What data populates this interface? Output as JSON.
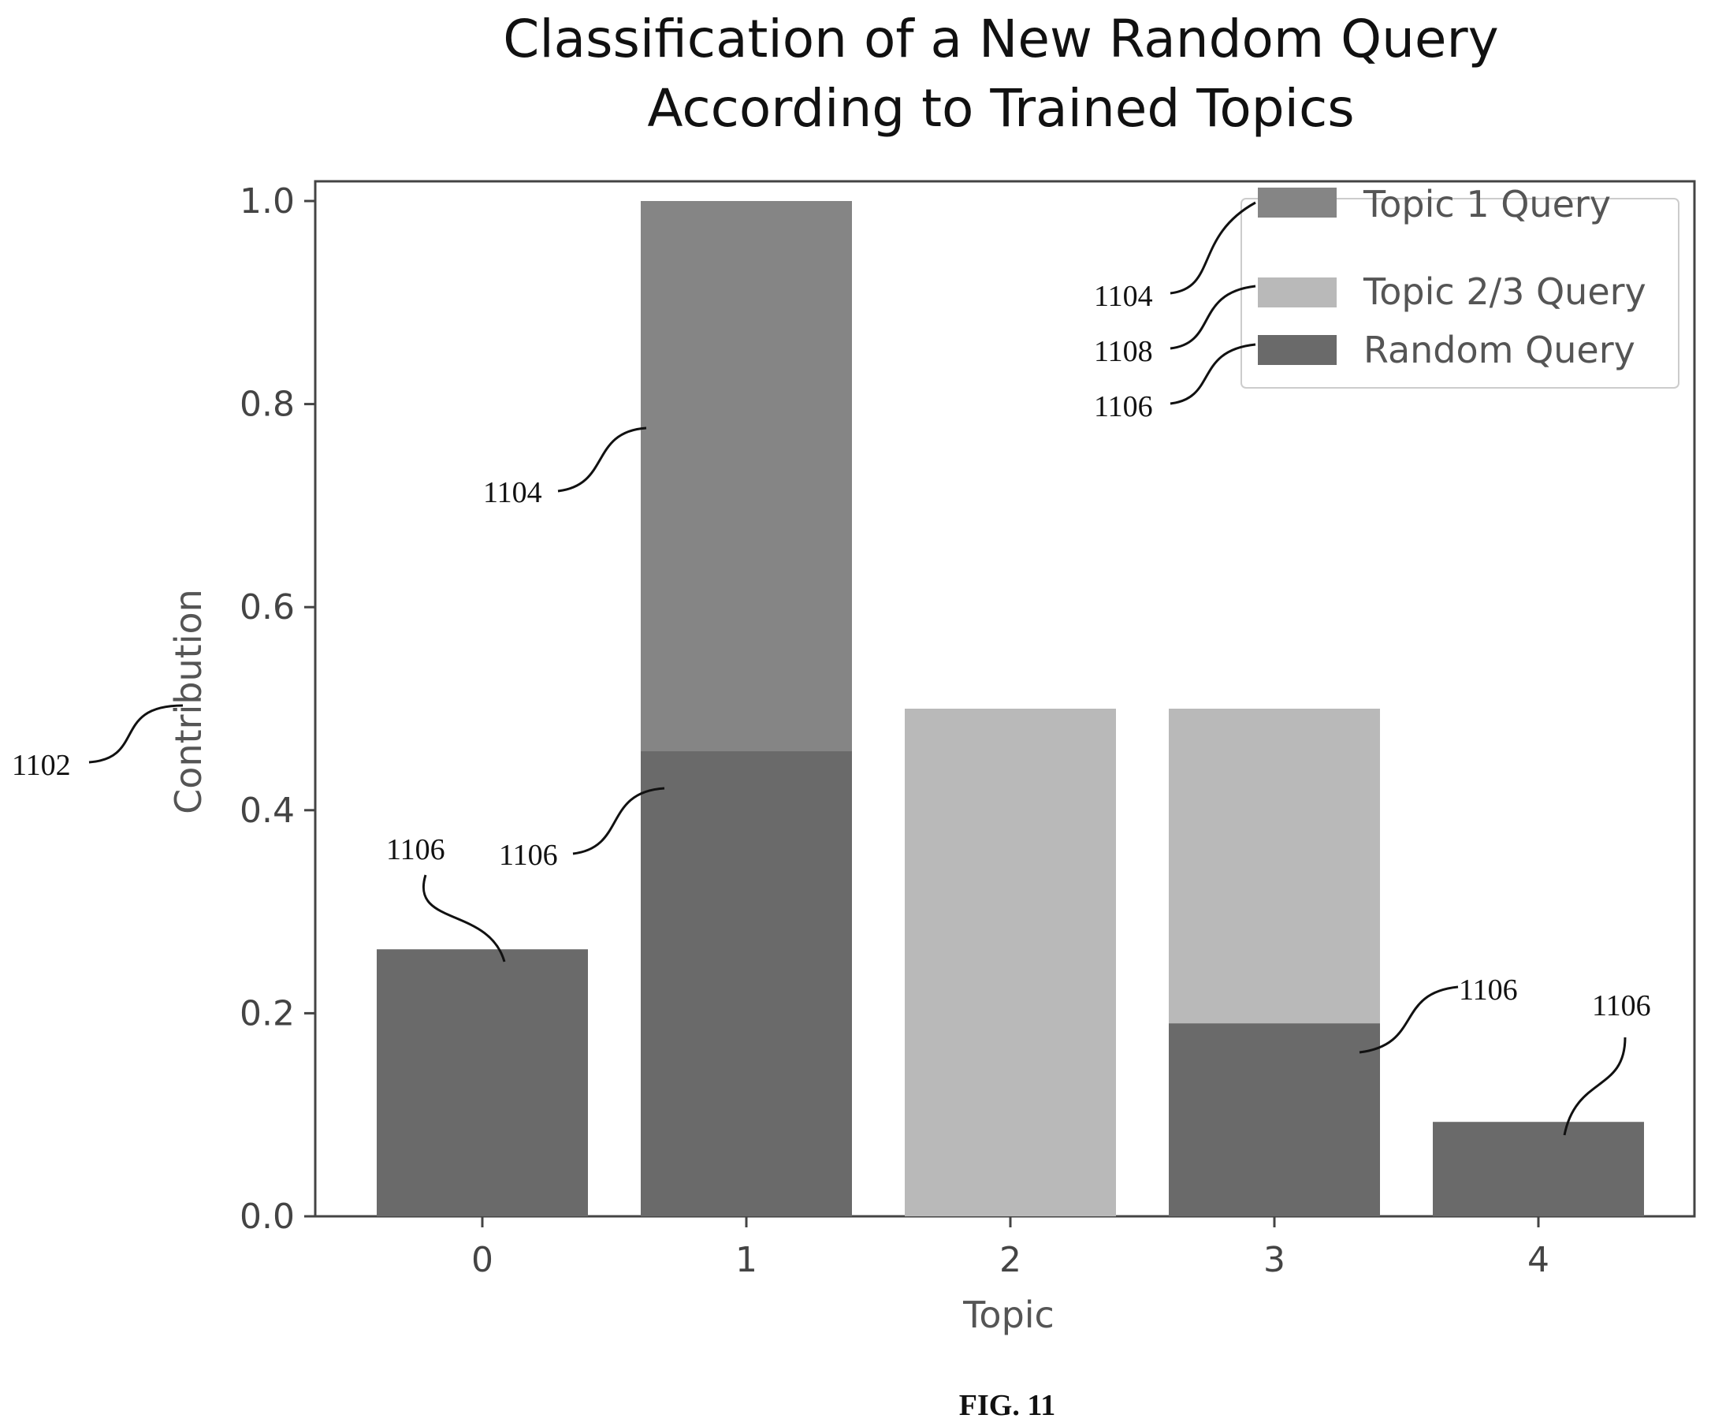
{
  "chart_data": {
    "type": "bar",
    "title_lines": [
      "Classification of a New Random Query",
      "According to Trained Topics"
    ],
    "xlabel": "Topic",
    "ylabel": "Contribution",
    "categories": [
      "0",
      "1",
      "2",
      "3",
      "4"
    ],
    "yticks": [
      "0.0",
      "0.2",
      "0.4",
      "0.6",
      "0.8",
      "1.0"
    ],
    "ylim": [
      0,
      1.05
    ],
    "grid": false,
    "legend_position": "top-right",
    "series": [
      {
        "name": "Topic 1 Query",
        "color": "#858585",
        "values": [
          0,
          1.0,
          0,
          0,
          0
        ]
      },
      {
        "name": "Topic 2/3 Query",
        "color": "#b9b9b9",
        "values": [
          0,
          0,
          0.5,
          0.5,
          0
        ]
      },
      {
        "name": "Random Query",
        "color": "#6a6a6a",
        "values": [
          0.263,
          0.458,
          0,
          0.19,
          0.093
        ]
      }
    ]
  },
  "annotations": {
    "ylabel_ref": "1102",
    "legend_refs": [
      "1104",
      "1108",
      "1106"
    ],
    "topic1_bar_ref": "1104",
    "random_bar_refs": [
      "1106",
      "1106",
      "1106",
      "1106"
    ]
  },
  "figure_label": "FIG. 11"
}
